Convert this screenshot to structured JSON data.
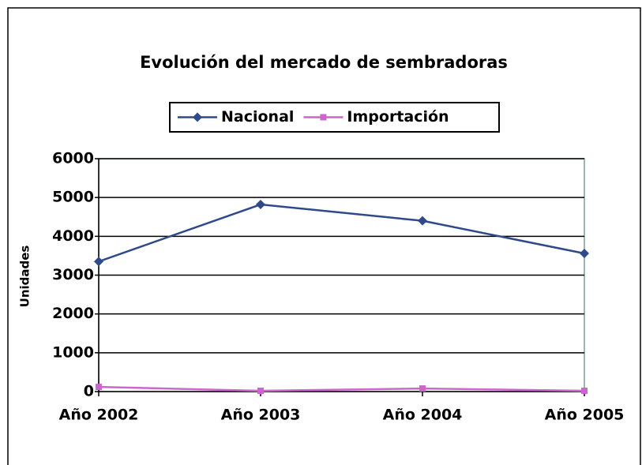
{
  "chart_data": {
    "type": "line",
    "title": "Evolución del mercado de sembradoras",
    "categories": [
      "Año 2002",
      "Año 2003",
      "Año 2004",
      "Año 2005"
    ],
    "series": [
      {
        "name": "Nacional",
        "color": "#2e4a8a",
        "values": [
          3350,
          4820,
          4400,
          3560
        ]
      },
      {
        "name": "Importación",
        "color": "#cc66cc",
        "values": [
          120,
          20,
          80,
          20
        ]
      }
    ],
    "y_label": "Unidades",
    "ylim": [
      0,
      6000
    ],
    "yticks": [
      0,
      1000,
      2000,
      3000,
      4000,
      5000,
      6000
    ],
    "grid": true,
    "legend": "top"
  }
}
